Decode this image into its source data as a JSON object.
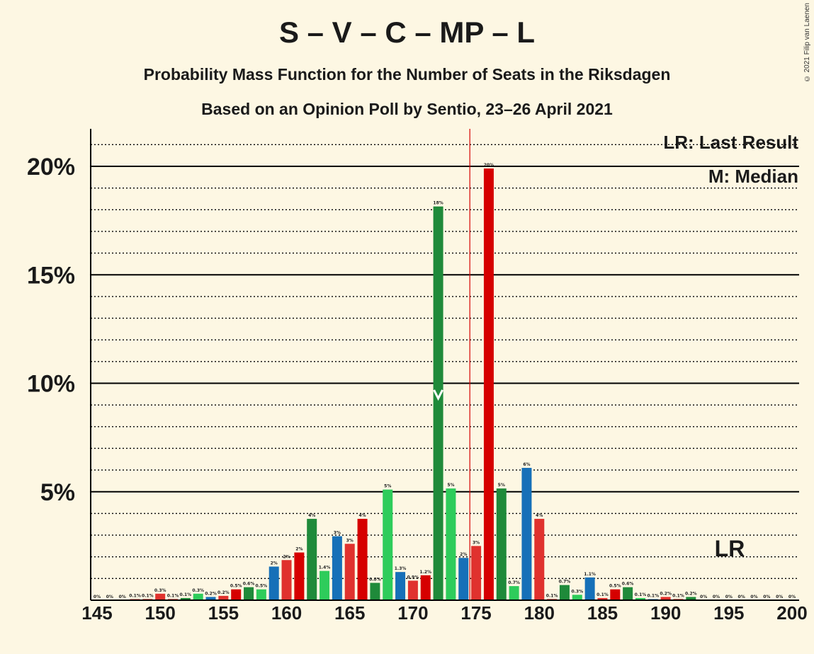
{
  "chart_data": {
    "type": "bar",
    "title": "S – V – C – MP – L",
    "subtitle": "Probability Mass Function for the Number of Seats in the Riksdagen",
    "subtitle2": "Based on an Opinion Poll by Sentio, 23–26 April 2021",
    "credit": "© 2021 Filip van Laenen",
    "legend": [
      "LR: Last Result",
      "M: Median"
    ],
    "xlim": [
      145,
      200
    ],
    "ylim": [
      0,
      21.7
    ],
    "x_ticks": [
      145,
      150,
      155,
      160,
      165,
      170,
      175,
      180,
      185,
      190,
      195,
      200
    ],
    "y_ticks": [
      {
        "value": 5,
        "label": "5%"
      },
      {
        "value": 10,
        "label": "10%"
      },
      {
        "value": 15,
        "label": "15%"
      },
      {
        "value": 20,
        "label": "20%"
      }
    ],
    "last_result": 174.5,
    "last_result_label": "LR",
    "median": 172,
    "bars": [
      {
        "x": 145,
        "value": 0,
        "label": "0%",
        "color": "#1f8a3a"
      },
      {
        "x": 146,
        "value": 0,
        "label": "0%",
        "color": "#2ecc5b"
      },
      {
        "x": 147,
        "value": 0,
        "label": "0%",
        "color": "#1670b8"
      },
      {
        "x": 148,
        "value": 0.05,
        "label": "0.1%",
        "color": "#e0322e"
      },
      {
        "x": 149,
        "value": 0.05,
        "label": "0.1%",
        "color": "#d60000"
      },
      {
        "x": 150,
        "value": 0.3,
        "label": "0.3%",
        "color": "#e0322e"
      },
      {
        "x": 151,
        "value": 0.05,
        "label": "0.1%",
        "color": "#d60000"
      },
      {
        "x": 152,
        "value": 0.1,
        "label": "0.1%",
        "color": "#1f8a3a"
      },
      {
        "x": 153,
        "value": 0.3,
        "label": "0.3%",
        "color": "#2ecc5b"
      },
      {
        "x": 154,
        "value": 0.15,
        "label": "0.2%",
        "color": "#1670b8"
      },
      {
        "x": 155,
        "value": 0.2,
        "label": "0.2%",
        "color": "#e0322e"
      },
      {
        "x": 156,
        "value": 0.5,
        "label": "0.5%",
        "color": "#d60000"
      },
      {
        "x": 157,
        "value": 0.6,
        "label": "0.6%",
        "color": "#1f8a3a"
      },
      {
        "x": 158,
        "value": 0.5,
        "label": "0.5%",
        "color": "#2ecc5b"
      },
      {
        "x": 159,
        "value": 1.55,
        "label": "2%",
        "color": "#1670b8"
      },
      {
        "x": 160,
        "value": 1.85,
        "label": "2%",
        "color": "#e0322e"
      },
      {
        "x": 161,
        "value": 2.2,
        "label": "2%",
        "color": "#d60000"
      },
      {
        "x": 162,
        "value": 3.75,
        "label": "4%",
        "color": "#1f8a3a"
      },
      {
        "x": 163,
        "value": 1.35,
        "label": "1.4%",
        "color": "#2ecc5b"
      },
      {
        "x": 164,
        "value": 2.95,
        "label": "3%",
        "color": "#1670b8"
      },
      {
        "x": 165,
        "value": 2.6,
        "label": "3%",
        "color": "#e0322e"
      },
      {
        "x": 166,
        "value": 3.75,
        "label": "4%",
        "color": "#d60000"
      },
      {
        "x": 167,
        "value": 0.8,
        "label": "0.8%",
        "color": "#1f8a3a"
      },
      {
        "x": 168,
        "value": 5.1,
        "label": "5%",
        "color": "#2ecc5b"
      },
      {
        "x": 169,
        "value": 1.3,
        "label": "1.3%",
        "color": "#1670b8"
      },
      {
        "x": 170,
        "value": 0.9,
        "label": "0.9%",
        "color": "#e0322e"
      },
      {
        "x": 171,
        "value": 1.15,
        "label": "1.2%",
        "color": "#d60000"
      },
      {
        "x": 172,
        "value": 18.15,
        "label": "18%",
        "color": "#1f8a3a"
      },
      {
        "x": 173,
        "value": 5.15,
        "label": "5%",
        "color": "#2ecc5b"
      },
      {
        "x": 174,
        "value": 1.95,
        "label": "2%",
        "color": "#1670b8"
      },
      {
        "x": 175,
        "value": 2.5,
        "label": "3%",
        "color": "#e0322e"
      },
      {
        "x": 176,
        "value": 19.9,
        "label": "20%",
        "color": "#d60000"
      },
      {
        "x": 177,
        "value": 5.15,
        "label": "5%",
        "color": "#1f8a3a"
      },
      {
        "x": 178,
        "value": 0.65,
        "label": "0.7%",
        "color": "#2ecc5b"
      },
      {
        "x": 179,
        "value": 6.1,
        "label": "6%",
        "color": "#1670b8"
      },
      {
        "x": 180,
        "value": 3.75,
        "label": "4%",
        "color": "#e0322e"
      },
      {
        "x": 181,
        "value": 0.05,
        "label": "0.1%",
        "color": "#d60000"
      },
      {
        "x": 182,
        "value": 0.7,
        "label": "0.7%",
        "color": "#1f8a3a"
      },
      {
        "x": 183,
        "value": 0.25,
        "label": "0.3%",
        "color": "#2ecc5b"
      },
      {
        "x": 184,
        "value": 1.05,
        "label": "1.1%",
        "color": "#1670b8"
      },
      {
        "x": 185,
        "value": 0.1,
        "label": "0.1%",
        "color": "#e0322e"
      },
      {
        "x": 186,
        "value": 0.5,
        "label": "0.5%",
        "color": "#d60000"
      },
      {
        "x": 187,
        "value": 0.6,
        "label": "0.6%",
        "color": "#1f8a3a"
      },
      {
        "x": 188,
        "value": 0.1,
        "label": "0.1%",
        "color": "#2ecc5b"
      },
      {
        "x": 189,
        "value": 0.05,
        "label": "0.1%",
        "color": "#1670b8"
      },
      {
        "x": 190,
        "value": 0.15,
        "label": "0.2%",
        "color": "#e0322e"
      },
      {
        "x": 191,
        "value": 0.05,
        "label": "0.1%",
        "color": "#d60000"
      },
      {
        "x": 192,
        "value": 0.15,
        "label": "0.2%",
        "color": "#1f8a3a"
      },
      {
        "x": 193,
        "value": 0,
        "label": "0%",
        "color": "#2ecc5b"
      },
      {
        "x": 194,
        "value": 0,
        "label": "0%",
        "color": "#1670b8"
      },
      {
        "x": 195,
        "value": 0,
        "label": "0%",
        "color": "#e0322e"
      },
      {
        "x": 196,
        "value": 0,
        "label": "0%",
        "color": "#d60000"
      },
      {
        "x": 197,
        "value": 0,
        "label": "0%",
        "color": "#1f8a3a"
      },
      {
        "x": 198,
        "value": 0,
        "label": "0%",
        "color": "#2ecc5b"
      },
      {
        "x": 199,
        "value": 0,
        "label": "0%",
        "color": "#1670b8"
      },
      {
        "x": 200,
        "value": 0,
        "label": "0%",
        "color": "#e0322e"
      }
    ]
  }
}
